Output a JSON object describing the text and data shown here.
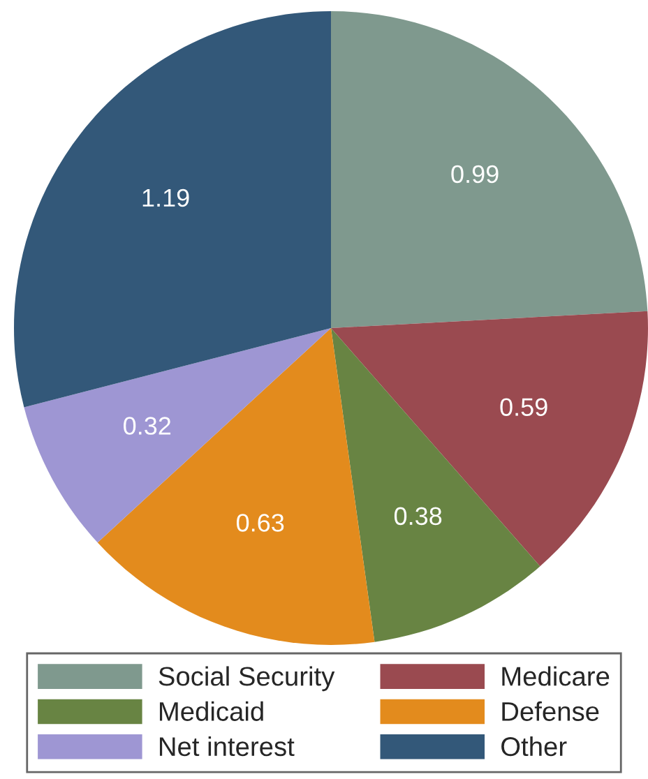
{
  "chart_data": {
    "type": "pie",
    "categories": [
      "Social Security",
      "Medicare",
      "Medicaid",
      "Defense",
      "Net interest",
      "Other"
    ],
    "values": [
      0.99,
      0.59,
      0.38,
      0.63,
      0.32,
      1.19
    ],
    "colors": [
      "#7f998e",
      "#9a4a50",
      "#688443",
      "#e38b1d",
      "#9e96d3",
      "#335879"
    ],
    "data_labels": true,
    "legend": "bottom"
  }
}
